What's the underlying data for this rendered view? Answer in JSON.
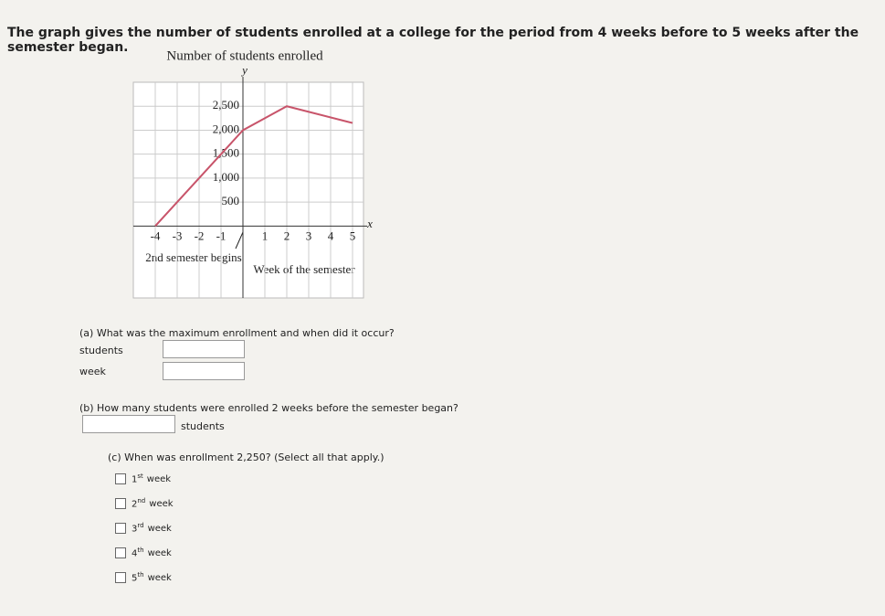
{
  "header": {
    "title": "The graph gives the number of students enrolled at a college for the period from 4 weeks before to 5 weeks after the semester began."
  },
  "chart_data": {
    "type": "line",
    "title": "Number of students enrolled",
    "x_label": "x",
    "y_label": "y",
    "x": [
      -4,
      0,
      2,
      5
    ],
    "series": [
      {
        "name": "Students enrolled",
        "color": "#c8546a",
        "values": [
          0,
          2000,
          2500,
          2150
        ]
      }
    ],
    "xlim": [
      -5,
      5.5
    ],
    "ylim": [
      -1500,
      3000
    ],
    "xticks": [
      -4,
      -3,
      -2,
      -1,
      1,
      2,
      3,
      4,
      5
    ],
    "yticks": [
      {
        "value": 500,
        "label": "500"
      },
      {
        "value": 1000,
        "label": "1,000"
      },
      {
        "value": 1500,
        "label": "1,500"
      },
      {
        "value": 2000,
        "label": "2,000"
      },
      {
        "value": 2500,
        "label": "2,500"
      }
    ],
    "grid": true,
    "annotations": [
      "2nd semester begins",
      "Week of the semester"
    ]
  },
  "questions": {
    "a": {
      "text": "(a) What was the maximum enrollment and when did it occur?",
      "fields": [
        "students",
        "week"
      ]
    },
    "b": {
      "text": "(b) How many students were enrolled 2 weeks before the semester began?",
      "unit": "students"
    },
    "c": {
      "text": "(c) When was enrollment 2,250? (Select all that apply.)",
      "options": [
        {
          "num": "1",
          "sup": "st",
          "text": "week"
        },
        {
          "num": "2",
          "sup": "nd",
          "text": "week"
        },
        {
          "num": "3",
          "sup": "rd",
          "text": "week"
        },
        {
          "num": "4",
          "sup": "th",
          "text": "week"
        },
        {
          "num": "5",
          "sup": "th",
          "text": "week"
        }
      ]
    }
  }
}
